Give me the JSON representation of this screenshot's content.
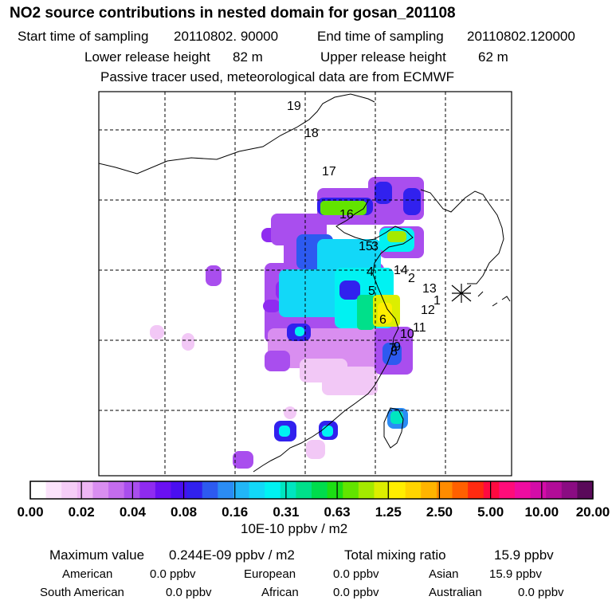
{
  "title": "NO2 source contributions in nested domain for gosan_201108",
  "header": {
    "start_label": "Start time of sampling",
    "start_value": "20110802. 90000",
    "end_label": "End time of sampling",
    "end_value": "20110802.120000",
    "lower_label": "Lower release height",
    "lower_value": "82 m",
    "upper_label": "Upper release height",
    "upper_value": "62 m",
    "note": "Passive tracer used, meteorological data are from ECMWF"
  },
  "chart_data": {
    "type": "heatmap",
    "title": "NO2 source contributions in nested domain for gosan_201108",
    "colorbar": {
      "unit": "10E-10 ppbv / m2",
      "tick_labels": [
        "0.00",
        "0.02",
        "0.04",
        "0.08",
        "0.16",
        "0.31",
        "0.63",
        "1.25",
        "2.50",
        "5.00",
        "10.00",
        "20.00"
      ],
      "colors": [
        "#ffffff",
        "#fbe3fb",
        "#f5cdf7",
        "#eeb6f4",
        "#d98ef0",
        "#c46cee",
        "#a94eee",
        "#8f2bf0",
        "#6a10f2",
        "#4a0ff0",
        "#3121ee",
        "#2d5af0",
        "#2b8cf4",
        "#22b6f6",
        "#12d8f8",
        "#00f2f2",
        "#00e6c0",
        "#00e08a",
        "#00dc4c",
        "#1cde14",
        "#62e400",
        "#a4ea00",
        "#dcee00",
        "#ffee00",
        "#ffd400",
        "#ffb400",
        "#ff8c00",
        "#ff6000",
        "#ff2a10",
        "#ff0a40",
        "#ff0c7a",
        "#ef0ca0",
        "#d40ca8",
        "#b20c98",
        "#8a0c82",
        "#5a0a5a"
      ]
    },
    "hourly_labels": [
      "19",
      "18",
      "17",
      "16",
      "15",
      "3",
      "4",
      "14",
      "2",
      "5",
      "13",
      "1",
      "12",
      "6",
      "11",
      "10",
      "9",
      "7",
      "8"
    ],
    "receptor": "Gosan"
  },
  "stats": {
    "max_label": "Maximum value",
    "max_value": "0.244E-09 ppbv / m2",
    "total_label": "Total mixing ratio",
    "total_value": "15.9 ppbv",
    "regions": [
      {
        "name": "American",
        "value": "0.0 ppbv"
      },
      {
        "name": "European",
        "value": "0.0 ppbv"
      },
      {
        "name": "Asian",
        "value": "15.9 ppbv"
      },
      {
        "name": "South American",
        "value": "0.0 ppbv"
      },
      {
        "name": "African",
        "value": "0.0 ppbv"
      },
      {
        "name": "Australian",
        "value": "0.0 ppbv"
      }
    ]
  }
}
